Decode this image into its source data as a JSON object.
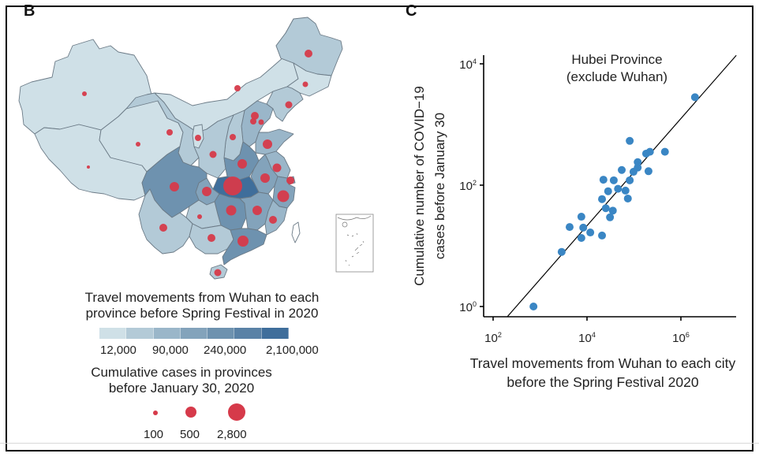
{
  "panels": {
    "map_label": "B",
    "scatter_label": "C"
  },
  "map": {
    "fill_legend": {
      "title_line1": "Travel movements from Wuhan to each",
      "title_line2": "province before Spring Festival in 2020",
      "bin_colors": [
        "#cfe0e7",
        "#b3cad7",
        "#9ab6c9",
        "#83a3bb",
        "#6e92af",
        "#5a82a6",
        "#3f6e9b"
      ],
      "tick_labels": [
        "12,000",
        "90,000",
        "240,000",
        "2,100,000"
      ]
    },
    "bubble_legend": {
      "title_line1": "Cumulative cases in provinces",
      "title_line2": "before January 30, 2020",
      "sizes": [
        {
          "label": "100",
          "value": 100
        },
        {
          "label": "500",
          "value": 500
        },
        {
          "label": "2,800",
          "value": 2800
        }
      ]
    },
    "colors": {
      "bubble": "#d63a4a",
      "border": "#6b7a86",
      "background": "#ffffff"
    }
  },
  "chart_data": {
    "type": "scatter",
    "title": "Hubei Province (exclude Wuhan)",
    "title_line1": "Hubei Province",
    "title_line2": "(exclude Wuhan)",
    "xlabel_line1": "Travel movements from Wuhan to each city",
    "xlabel_line2": "before the Spring Festival 2020",
    "ylabel_line1": "Cumulative number of COVID−19",
    "ylabel_line2": "cases before January 30",
    "xscale": "log10",
    "yscale": "log10",
    "xlim_log10": [
      1.8,
      7.2
    ],
    "ylim_log10": [
      -0.17,
      4.15
    ],
    "xticks": [
      {
        "base": "10",
        "exp": "2",
        "log": 2
      },
      {
        "base": "10",
        "exp": "4",
        "log": 4
      },
      {
        "base": "10",
        "exp": "6",
        "log": 6
      }
    ],
    "yticks": [
      {
        "base": "10",
        "exp": "0",
        "log": 0
      },
      {
        "base": "10",
        "exp": "2",
        "log": 2
      },
      {
        "base": "10",
        "exp": "4",
        "log": 4
      }
    ],
    "grid": false,
    "point_color": "#3a86c4",
    "points_log10": [
      [
        2.86,
        0.0
      ],
      [
        3.46,
        0.9
      ],
      [
        3.63,
        1.31
      ],
      [
        3.88,
        1.48
      ],
      [
        3.92,
        1.3
      ],
      [
        3.88,
        1.13
      ],
      [
        4.07,
        1.22
      ],
      [
        4.32,
        1.17
      ],
      [
        4.4,
        1.62
      ],
      [
        4.49,
        1.47
      ],
      [
        4.55,
        1.58
      ],
      [
        4.32,
        1.77
      ],
      [
        4.45,
        1.9
      ],
      [
        4.66,
        1.94
      ],
      [
        4.82,
        1.91
      ],
      [
        4.87,
        1.78
      ],
      [
        4.35,
        2.09
      ],
      [
        4.57,
        2.08
      ],
      [
        4.91,
        2.08
      ],
      [
        4.74,
        2.25
      ],
      [
        4.99,
        2.22
      ],
      [
        5.08,
        2.29
      ],
      [
        5.08,
        2.38
      ],
      [
        5.31,
        2.23
      ],
      [
        5.26,
        2.52
      ],
      [
        5.34,
        2.55
      ],
      [
        5.66,
        2.55
      ],
      [
        4.91,
        2.73
      ],
      [
        6.3,
        3.45
      ]
    ],
    "fit_line_log10": [
      [
        2.3,
        -0.17
      ],
      [
        7.18,
        4.14
      ]
    ]
  }
}
